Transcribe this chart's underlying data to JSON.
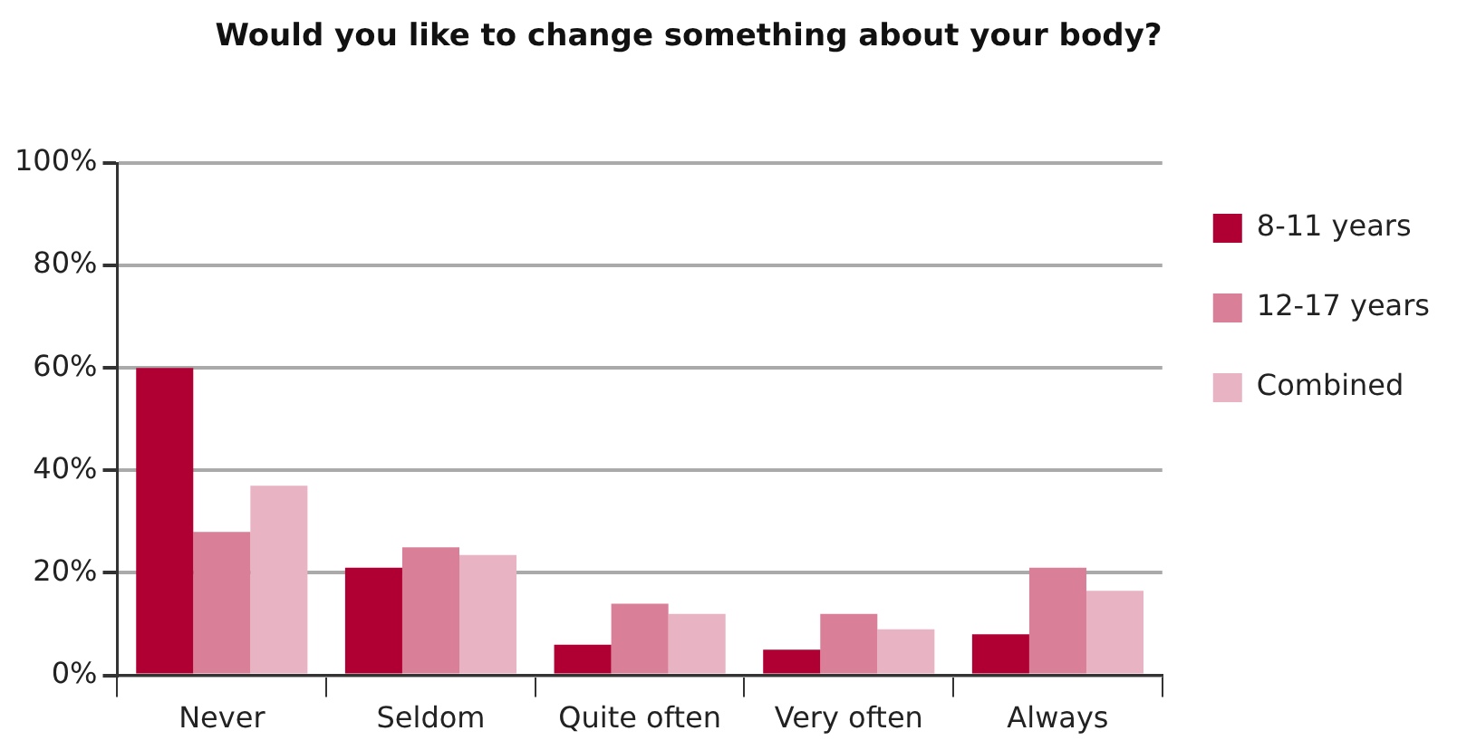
{
  "chart_data": {
    "type": "bar",
    "title": "Would you like to change something about your body?",
    "categories": [
      "Never",
      "Seldom",
      "Quite often",
      "Very often",
      "Always"
    ],
    "series": [
      {
        "name": "8-11 years",
        "color": "#b00033",
        "values": [
          60,
          21,
          6,
          5,
          8
        ]
      },
      {
        "name": "12-17 years",
        "color": "#d97f98",
        "values": [
          28,
          25,
          14,
          12,
          21
        ]
      },
      {
        "name": "Combined",
        "color": "#e8b3c3",
        "values": [
          37,
          23.5,
          12,
          9,
          16.5
        ]
      }
    ],
    "ylim": [
      0,
      100
    ],
    "yticks": [
      {
        "value": 0,
        "label": "0%"
      },
      {
        "value": 20,
        "label": "20%"
      },
      {
        "value": 40,
        "label": "40%"
      },
      {
        "value": 60,
        "label": "60%"
      },
      {
        "value": 80,
        "label": "80%"
      },
      {
        "value": 100,
        "label": "100%"
      }
    ],
    "grid": "y",
    "legend": "right"
  }
}
